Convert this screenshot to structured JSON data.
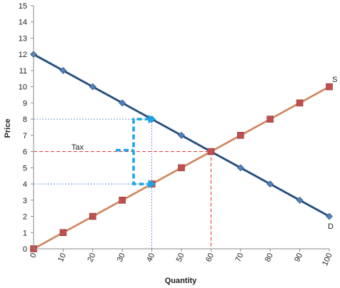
{
  "chart_data": {
    "type": "line",
    "xlabel": "Quantity",
    "ylabel": "Price",
    "xlim": [
      0,
      100
    ],
    "ylim": [
      0,
      15
    ],
    "x_ticks": [
      0,
      10,
      20,
      30,
      40,
      50,
      60,
      70,
      80,
      90,
      100
    ],
    "y_ticks": [
      0,
      1,
      2,
      3,
      4,
      5,
      6,
      7,
      8,
      9,
      10,
      11,
      12,
      13,
      14,
      15
    ],
    "grid": false,
    "series": [
      {
        "name": "D",
        "marker": "diamond",
        "color": "#1f3550",
        "marker_color": "#4f81bd",
        "x": [
          0,
          10,
          20,
          30,
          40,
          50,
          60,
          70,
          80,
          90,
          100
        ],
        "y": [
          12,
          11,
          10,
          9,
          8,
          7,
          6,
          5,
          4,
          3,
          2
        ]
      },
      {
        "name": "S",
        "marker": "square",
        "color": "#c0734a",
        "marker_color": "#c0504d",
        "x": [
          0,
          10,
          20,
          30,
          40,
          50,
          60,
          70,
          80,
          90,
          100
        ],
        "y": [
          0,
          1,
          2,
          3,
          4,
          5,
          6,
          7,
          8,
          9,
          10
        ]
      }
    ],
    "annotations": {
      "tax_label": "Tax",
      "equilibrium": {
        "q": 60,
        "p": 6,
        "color": "#e03030"
      },
      "tax_quantity": 40,
      "buyer_price": 8,
      "seller_price": 4,
      "guide_color": "#4f81bd",
      "arrow_color": "#1aa3e8"
    }
  }
}
